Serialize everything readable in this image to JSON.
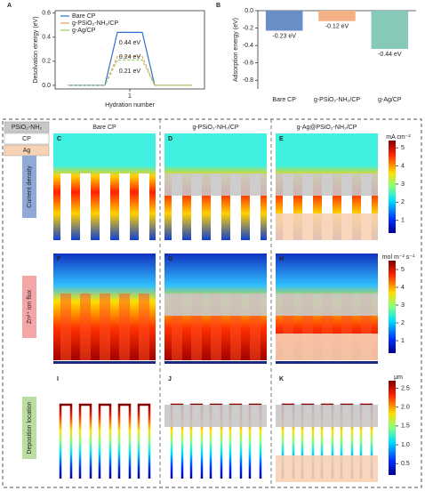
{
  "chart_data": [
    {
      "type": "line",
      "label": "A",
      "xlabel": "Hydration number",
      "ylabel": "Desolvation energy (eV)",
      "x": [
        0.5,
        0.8,
        0.9,
        1.1,
        1.2,
        1.5
      ],
      "series": [
        {
          "name": "Bare CP",
          "color": "#2f6fd0",
          "values": [
            0,
            0,
            0.44,
            0.44,
            0,
            0
          ]
        },
        {
          "name": "g-PSiO₂-NH₂/CP",
          "color": "#f0a050",
          "values": [
            0,
            0,
            0.24,
            0.24,
            0,
            0
          ]
        },
        {
          "name": "g-Ag/CP",
          "color": "#9ccf6a",
          "values": [
            0,
            0,
            0.21,
            0.21,
            0,
            0
          ]
        }
      ],
      "annotations": [
        "0.44 eV",
        "0.24 eV",
        "0.21 eV"
      ],
      "xlim": [
        0.4,
        1.6
      ],
      "xticks": [
        1
      ],
      "ylim": [
        -0.03,
        0.62
      ],
      "yticks": [
        {
          "value": 0,
          "label": "0.0"
        },
        0.2,
        0.4,
        0.6
      ]
    },
    {
      "type": "bar",
      "label": "B",
      "ylabel": "Adsorption energy (eV)",
      "categories": [
        "Bare CP",
        "g-PSiO₂-NH₂/CP",
        "g-Ag/CP"
      ],
      "colors": [
        "#6a8fc8",
        "#f4b183",
        "#86c9b8"
      ],
      "values": [
        -0.23,
        -0.12,
        -0.44
      ],
      "value_labels": [
        "-0.23 eV",
        "-0.12 eV",
        "-0.44 eV"
      ],
      "ylim": [
        -0.9,
        0
      ],
      "yticks": [
        {
          "value": 0,
          "label": "0.0"
        },
        -0.2,
        -0.4,
        -0.6,
        -0.8
      ]
    }
  ],
  "materials_legend": [
    "PSiO₂-NH₂",
    "CP",
    "Ag"
  ],
  "columns": [
    "Bare CP",
    "g-PSiO₂-NH₂/CP",
    "g-Ag@PSiO₂-NH₂/CP"
  ],
  "rows": [
    "Current density",
    "Zn²⁺ ion flux",
    "Deposition location"
  ],
  "panels": [
    "C",
    "D",
    "E",
    "F",
    "G",
    "H",
    "I",
    "J",
    "K"
  ],
  "colorbars": [
    {
      "unit": "mA cm⁻²",
      "lim": [
        0.3,
        5.4
      ],
      "ticks": [
        1,
        2,
        3,
        4,
        5
      ]
    },
    {
      "unit": "mol m⁻² s⁻¹",
      "lim": [
        0.3,
        5.5
      ],
      "ticks": [
        1,
        2,
        3,
        4,
        5
      ]
    },
    {
      "unit": "μm",
      "lim": [
        0.2,
        2.7
      ],
      "ticks": [
        0.5,
        {
          "value": 1,
          "label": "1.0"
        },
        1.5,
        {
          "value": 2,
          "label": "2.0"
        },
        2.5
      ]
    }
  ]
}
